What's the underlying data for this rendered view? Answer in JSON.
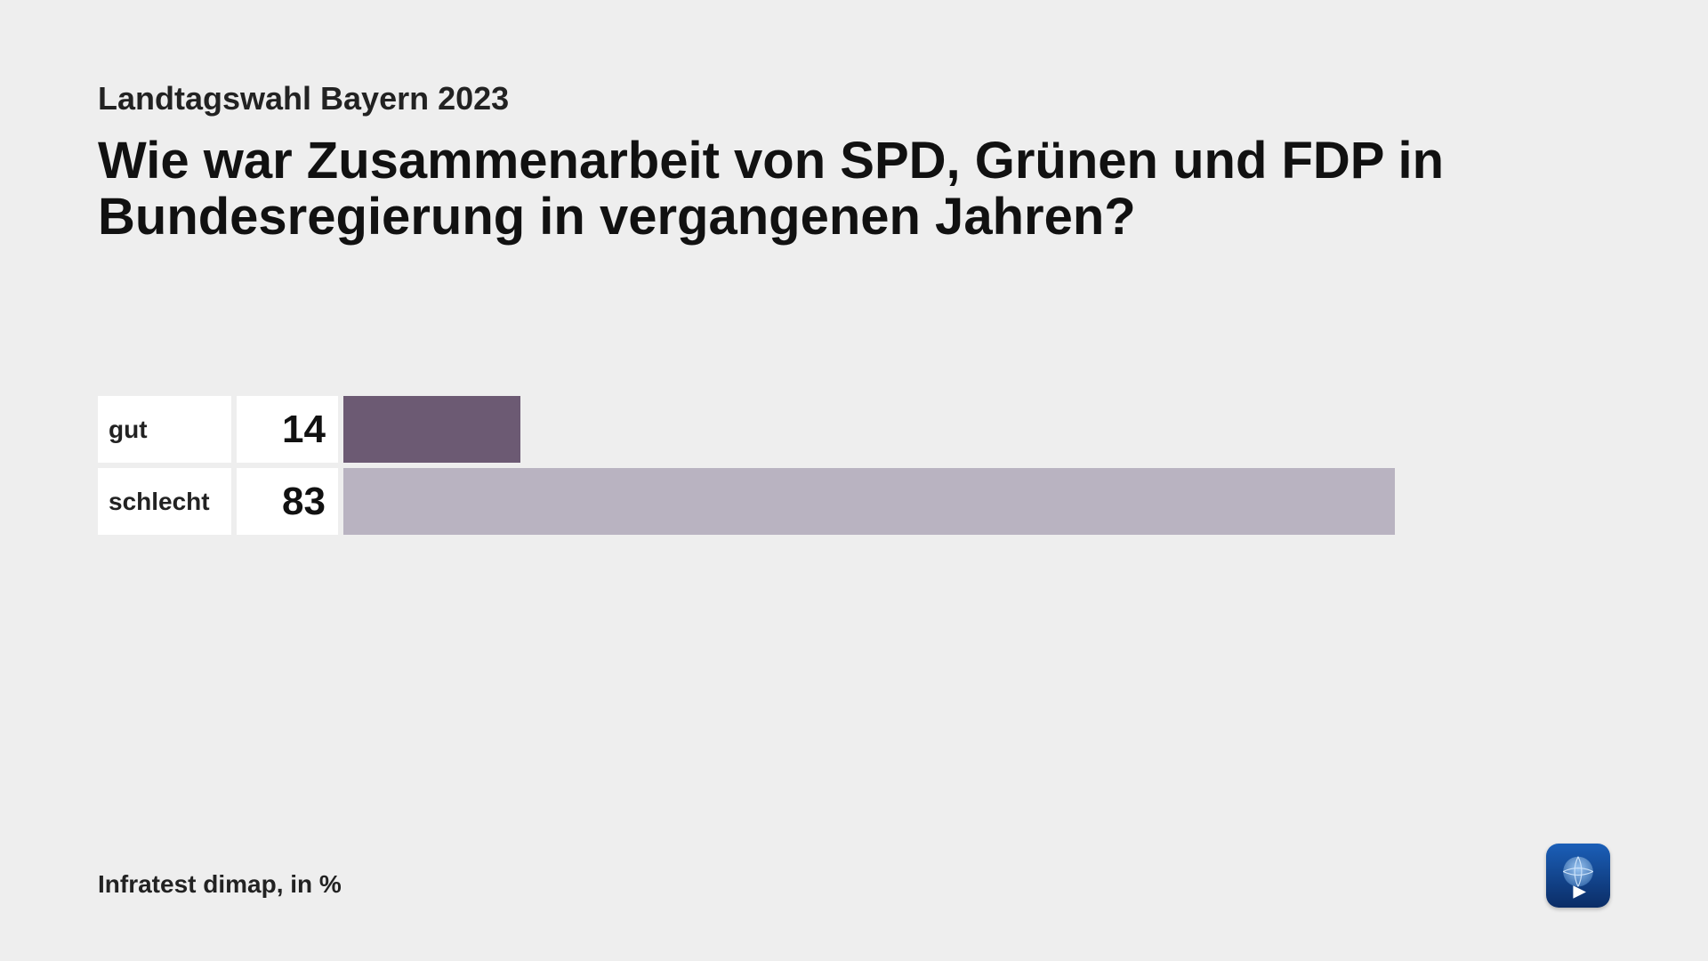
{
  "layout": {
    "background_color": "#eeeeee",
    "row_background_color": "#ffffff",
    "row_gap_color": "#eeeeee"
  },
  "header": {
    "subtitle": "Landtagswahl Bayern 2023",
    "subtitle_fontsize": 36,
    "title": "Wie war Zusammenarbeit von SPD, Grünen und FDP in Bundesregierung in vergangenen Jahren?",
    "title_fontsize": 58
  },
  "chart": {
    "type": "bar",
    "orientation": "horizontal",
    "max_value": 100,
    "label_fontsize": 28,
    "value_fontsize": 44,
    "bars": [
      {
        "label": "gut",
        "value": 14,
        "color": "#6c5a73"
      },
      {
        "label": "schlecht",
        "value": 83,
        "color": "#b9b3c1"
      }
    ]
  },
  "footer": {
    "source": "Infratest dimap, in %",
    "fontsize": 28
  },
  "logo": {
    "name": "das-erste-logo",
    "bg_gradient_top": "#1b5fb8",
    "bg_gradient_bottom": "#0b2d66",
    "globe_color": "#6fa9e6",
    "triangle_color": "#ffffff"
  }
}
